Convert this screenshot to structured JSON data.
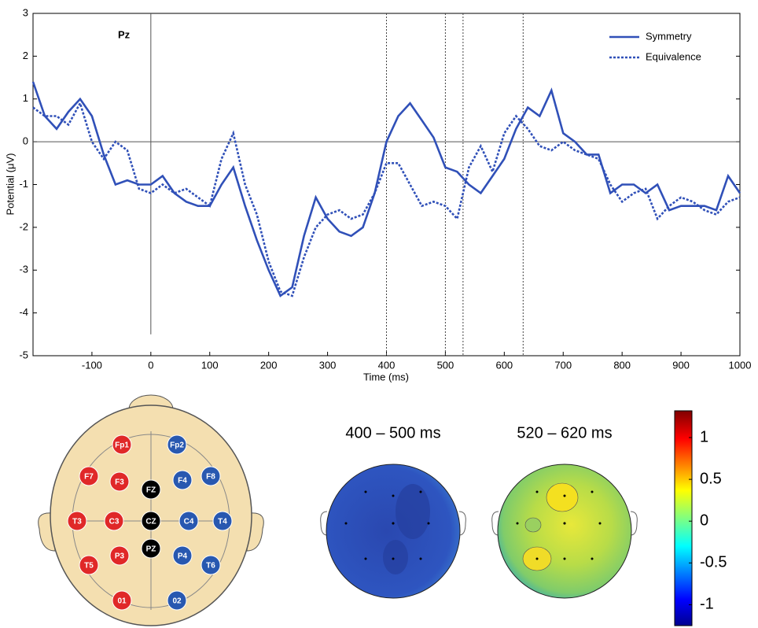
{
  "chart_data": {
    "type": "line",
    "panel_label": "Pz",
    "x_label": "Time (ms)",
    "y_label": "Potential (μV)",
    "xlim": [
      -200,
      1000
    ],
    "ylim": [
      -5,
      3
    ],
    "xticks": [
      -100,
      0,
      100,
      200,
      300,
      400,
      500,
      600,
      700,
      800,
      900,
      1000
    ],
    "yticks": [
      -5,
      -4,
      -3,
      -2,
      -1,
      0,
      1,
      2,
      3
    ],
    "legend": "upper right",
    "vlines": [
      400,
      500,
      530,
      632
    ],
    "x": [
      -200,
      -180,
      -160,
      -140,
      -120,
      -100,
      -80,
      -60,
      -40,
      -20,
      0,
      20,
      40,
      60,
      80,
      100,
      120,
      140,
      160,
      180,
      200,
      220,
      240,
      260,
      280,
      300,
      320,
      340,
      360,
      380,
      400,
      420,
      440,
      460,
      480,
      500,
      520,
      540,
      560,
      580,
      600,
      620,
      640,
      660,
      680,
      700,
      720,
      740,
      760,
      780,
      800,
      820,
      840,
      860,
      880,
      900,
      920,
      940,
      960,
      980,
      1000
    ],
    "series": [
      {
        "name": "Symmetry",
        "color": "#3050b8",
        "dash": "solid",
        "values": [
          1.4,
          0.6,
          0.3,
          0.7,
          1.0,
          0.6,
          -0.3,
          -1.0,
          -0.9,
          -1.0,
          -1.0,
          -0.8,
          -1.2,
          -1.4,
          -1.5,
          -1.5,
          -1.0,
          -0.6,
          -1.5,
          -2.3,
          -3.0,
          -3.6,
          -3.4,
          -2.2,
          -1.3,
          -1.8,
          -2.1,
          -2.2,
          -2.0,
          -1.2,
          0.0,
          0.6,
          0.9,
          0.5,
          0.1,
          -0.6,
          -0.7,
          -1.0,
          -1.2,
          -0.8,
          -0.4,
          0.3,
          0.8,
          0.6,
          1.2,
          0.2,
          0.0,
          -0.3,
          -0.3,
          -1.2,
          -1.0,
          -1.0,
          -1.2,
          -1.0,
          -1.6,
          -1.5,
          -1.5,
          -1.5,
          -1.6,
          -0.8,
          -1.2
        ]
      },
      {
        "name": "Equivalence",
        "color": "#3050b8",
        "dash": "dotted",
        "values": [
          0.8,
          0.6,
          0.6,
          0.4,
          0.9,
          0.0,
          -0.4,
          0.0,
          -0.2,
          -1.1,
          -1.2,
          -1.0,
          -1.2,
          -1.1,
          -1.3,
          -1.5,
          -0.4,
          0.2,
          -1.0,
          -1.7,
          -2.8,
          -3.5,
          -3.6,
          -2.7,
          -2.0,
          -1.7,
          -1.6,
          -1.8,
          -1.7,
          -1.2,
          -0.5,
          -0.5,
          -1.0,
          -1.5,
          -1.4,
          -1.5,
          -1.8,
          -0.6,
          -0.1,
          -0.7,
          0.2,
          0.6,
          0.3,
          -0.1,
          -0.2,
          0.0,
          -0.2,
          -0.3,
          -0.4,
          -1.0,
          -1.4,
          -1.2,
          -1.1,
          -1.8,
          -1.5,
          -1.3,
          -1.4,
          -1.6,
          -1.7,
          -1.4,
          -1.3
        ]
      }
    ]
  },
  "head": {
    "electrodes": [
      {
        "label": "Fp1",
        "color": "#e02828"
      },
      {
        "label": "Fp2",
        "color": "#2858b0"
      },
      {
        "label": "F7",
        "color": "#e02828"
      },
      {
        "label": "F3",
        "color": "#e02828"
      },
      {
        "label": "FZ",
        "color": "#000000"
      },
      {
        "label": "F4",
        "color": "#2858b0"
      },
      {
        "label": "F8",
        "color": "#2858b0"
      },
      {
        "label": "T3",
        "color": "#e02828"
      },
      {
        "label": "C3",
        "color": "#e02828"
      },
      {
        "label": "CZ",
        "color": "#000000"
      },
      {
        "label": "C4",
        "color": "#2858b0"
      },
      {
        "label": "T4",
        "color": "#2858b0"
      },
      {
        "label": "P3",
        "color": "#e02828"
      },
      {
        "label": "PZ",
        "color": "#000000"
      },
      {
        "label": "P4",
        "color": "#2858b0"
      },
      {
        "label": "T5",
        "color": "#e02828"
      },
      {
        "label": "T6",
        "color": "#2858b0"
      },
      {
        "label": "01",
        "color": "#e02828"
      },
      {
        "label": "02",
        "color": "#2858b0"
      }
    ]
  },
  "topomaps": {
    "titles": [
      "400 – 500 ms",
      "520 – 620 ms"
    ],
    "colorbar": {
      "lim": [
        -1.25,
        1.32
      ],
      "ticks": [
        1,
        0.5,
        0,
        -0.5,
        -1
      ]
    }
  }
}
